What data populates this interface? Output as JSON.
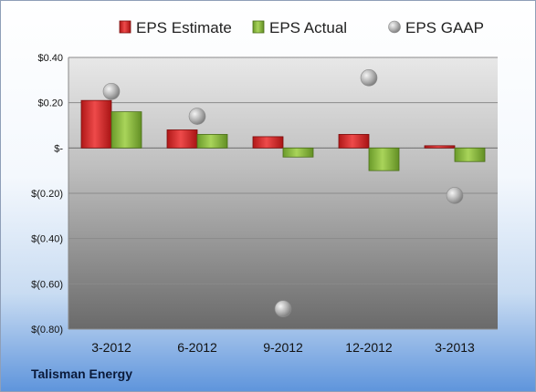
{
  "chart_data": {
    "type": "bar",
    "title": "",
    "xlabel": "",
    "ylabel": "",
    "categories": [
      "3-2012",
      "6-2012",
      "9-2012",
      "12-2012",
      "3-2013"
    ],
    "series": [
      {
        "name": "EPS Estimate",
        "kind": "bar",
        "color": "#d42a2a",
        "values": [
          0.21,
          0.08,
          0.05,
          0.06,
          0.01
        ]
      },
      {
        "name": "EPS Actual",
        "kind": "bar",
        "color": "#8ebf3f",
        "values": [
          0.16,
          0.06,
          -0.04,
          -0.1,
          -0.06
        ]
      },
      {
        "name": "EPS GAAP",
        "kind": "marker",
        "color": "#a8a8a8",
        "values": [
          0.25,
          0.14,
          -0.71,
          0.31,
          -0.21
        ]
      }
    ],
    "ylim": [
      -0.8,
      0.4
    ],
    "yticks": [
      {
        "value": 0.4,
        "label": "$0.40"
      },
      {
        "value": 0.2,
        "label": "$0.20"
      },
      {
        "value": 0.0,
        "label": "$-"
      },
      {
        "value": -0.2,
        "label": "$(0.20)"
      },
      {
        "value": -0.4,
        "label": "$(0.40)"
      },
      {
        "value": -0.6,
        "label": "$(0.60)"
      },
      {
        "value": -0.8,
        "label": "$(0.80)"
      }
    ],
    "grid": true,
    "legend": "top"
  },
  "footer": {
    "company": "Talisman Energy"
  }
}
